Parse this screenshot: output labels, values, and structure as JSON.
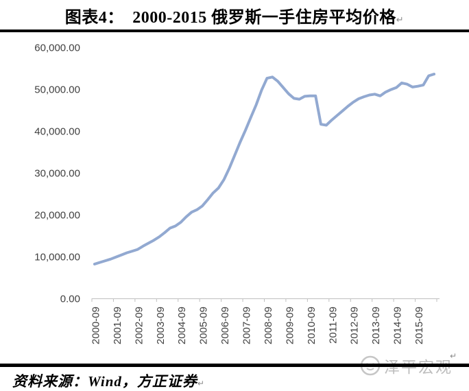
{
  "title": {
    "label": "图表4：　2000-2015 俄罗斯一手住房平均价格",
    "return_mark": "↵"
  },
  "source": {
    "label": "资料来源：Wind，方正证券",
    "return_mark": "↵"
  },
  "watermark": {
    "text": "泽平宏观",
    "logo": "zeping-macro-circle-logo",
    "return_mark": "↵",
    "color": "#bdbdbd"
  },
  "chart_data": {
    "type": "line",
    "title": "",
    "xlabel": "",
    "ylabel": "",
    "ylim": [
      0,
      60000
    ],
    "y_step": 10000,
    "grid": false,
    "legend": "none",
    "line_color": "#92A9D1",
    "axis_color": "#bfbfbf",
    "label_color": "#3f3f3f",
    "y_tick_labels": [
      "60,000.00",
      "50,000.00",
      "40,000.00",
      "30,000.00",
      "20,000.00",
      "10,000.00",
      "0.00"
    ],
    "x_tick_labels": [
      "2000-09",
      "2001-09",
      "2002-09",
      "2003-09",
      "2004-09",
      "2005-09",
      "2006-09",
      "2007-09",
      "2008-09",
      "2009-09",
      "2010-09",
      "2011-09",
      "2012-09",
      "2013-09",
      "2014-09",
      "2015-09"
    ],
    "x": [
      "2000-09",
      "2000-12",
      "2001-03",
      "2001-06",
      "2001-09",
      "2001-12",
      "2002-03",
      "2002-06",
      "2002-09",
      "2002-12",
      "2003-03",
      "2003-06",
      "2003-09",
      "2003-12",
      "2004-03",
      "2004-06",
      "2004-09",
      "2004-12",
      "2005-03",
      "2005-06",
      "2005-09",
      "2005-12",
      "2006-03",
      "2006-06",
      "2006-09",
      "2006-12",
      "2007-03",
      "2007-06",
      "2007-09",
      "2007-12",
      "2008-03",
      "2008-06",
      "2008-09",
      "2008-12",
      "2009-03",
      "2009-06",
      "2009-09",
      "2009-12",
      "2010-03",
      "2010-06",
      "2010-09",
      "2010-12",
      "2011-03",
      "2011-06",
      "2011-09",
      "2011-12",
      "2012-03",
      "2012-06",
      "2012-09",
      "2012-12",
      "2013-03",
      "2013-06",
      "2013-09",
      "2013-12",
      "2014-03",
      "2014-06",
      "2014-09",
      "2014-12",
      "2015-03",
      "2015-06",
      "2015-09",
      "2015-12",
      "2016-03",
      "2016-06"
    ],
    "values": [
      8200,
      8600,
      9000,
      9400,
      9900,
      10400,
      10900,
      11300,
      11700,
      12500,
      13200,
      13900,
      14700,
      15700,
      16800,
      17300,
      18200,
      19500,
      20600,
      21200,
      22100,
      23600,
      25200,
      26400,
      28400,
      31100,
      34200,
      37300,
      40200,
      43300,
      46300,
      49800,
      52600,
      52900,
      51900,
      50400,
      48900,
      47800,
      47600,
      48300,
      48400,
      48400,
      41600,
      41400,
      42600,
      43700,
      44800,
      45900,
      46900,
      47700,
      48200,
      48600,
      48800,
      48400,
      49300,
      49900,
      50400,
      51500,
      51200,
      50500,
      50700,
      51000,
      53200,
      53600
    ]
  }
}
